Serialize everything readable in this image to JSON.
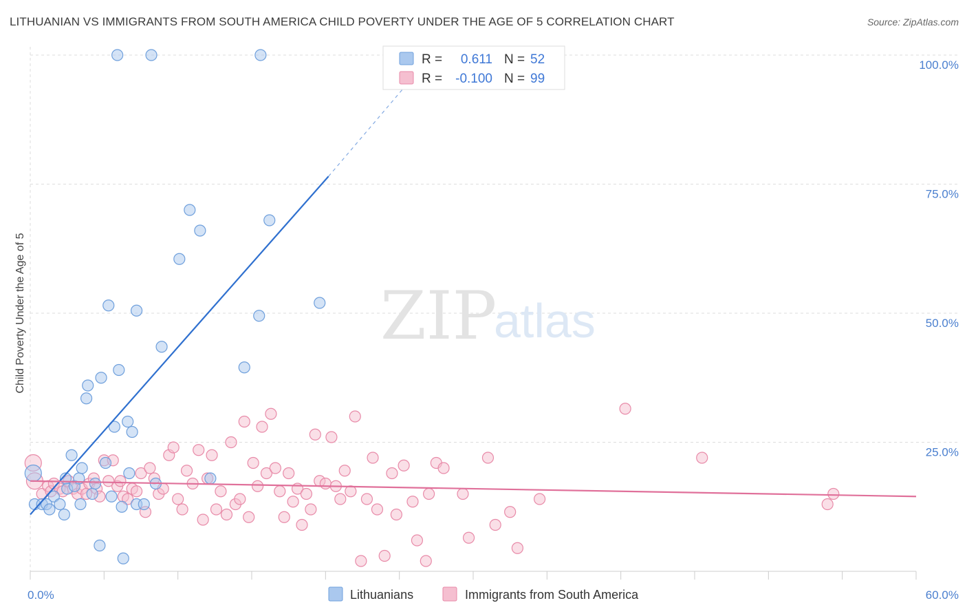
{
  "title": "LITHUANIAN VS IMMIGRANTS FROM SOUTH AMERICA CHILD POVERTY UNDER THE AGE OF 5 CORRELATION CHART",
  "source": "Source: ZipAtlas.com",
  "watermark": {
    "zip": "ZIP",
    "atlas": "atlas"
  },
  "colors": {
    "blue_fill": "#aac8ee",
    "blue_stroke": "#6e9fdc",
    "blue_line": "#2f70cf",
    "pink_fill": "#f5bfd0",
    "pink_stroke": "#e88aa8",
    "pink_line": "#e0709a",
    "grid": "#dddddd",
    "axis_text": "#4a7fcf"
  },
  "legend": {
    "r_label": "R =",
    "n_label": "N =",
    "rows": [
      {
        "series": "Lithuanians",
        "r": "0.611",
        "n": "52"
      },
      {
        "series": "Immigrants from South America",
        "r": "-0.100",
        "n": "99"
      }
    ]
  },
  "chart_data": {
    "type": "scatter",
    "title": "LITHUANIAN VS IMMIGRANTS FROM SOUTH AMERICA CHILD POVERTY UNDER THE AGE OF 5 CORRELATION CHART",
    "xlabel": "",
    "ylabel": "Child Poverty Under the Age of 5",
    "xlim": [
      0,
      60
    ],
    "ylim": [
      0,
      100
    ],
    "x_tick_labels": [
      {
        "value": 0,
        "label": "0.0%"
      },
      {
        "value": 60,
        "label": "60.0%"
      }
    ],
    "y_tick_labels": [
      {
        "value": 25,
        "label": "25.0%"
      },
      {
        "value": 50,
        "label": "50.0%"
      },
      {
        "value": 75,
        "label": "75.0%"
      },
      {
        "value": 100,
        "label": "100.0%"
      }
    ],
    "grid": true,
    "legend_position": "top-center",
    "series": [
      {
        "name": "Lithuanians",
        "color": "blue",
        "trend": {
          "x": [
            0,
            20.2
          ],
          "y": [
            11,
            76.5
          ],
          "dashed_to": [
            26,
            96
          ]
        },
        "points": [
          [
            0.2,
            19.0,
            12
          ],
          [
            0.3,
            13.0,
            8
          ],
          [
            0.8,
            13.0,
            8
          ],
          [
            1.1,
            13.0,
            8
          ],
          [
            1.3,
            12.0,
            8
          ],
          [
            1.6,
            14.5,
            8
          ],
          [
            2.0,
            13.0,
            8
          ],
          [
            2.3,
            11.0,
            8
          ],
          [
            2.5,
            16.0,
            8
          ],
          [
            2.4,
            18.0,
            8
          ],
          [
            2.8,
            22.5,
            8
          ],
          [
            3.0,
            16.5,
            8
          ],
          [
            3.3,
            18.0,
            8
          ],
          [
            3.4,
            13.0,
            8
          ],
          [
            3.5,
            20.0,
            8
          ],
          [
            3.8,
            33.5,
            8
          ],
          [
            3.9,
            36.0,
            8
          ],
          [
            4.2,
            15.0,
            8
          ],
          [
            4.4,
            17.0,
            8
          ],
          [
            4.7,
            5.0,
            8
          ],
          [
            4.8,
            37.5,
            8
          ],
          [
            5.1,
            21.0,
            8
          ],
          [
            5.3,
            51.5,
            8
          ],
          [
            5.5,
            14.5,
            8
          ],
          [
            5.7,
            28.0,
            8
          ],
          [
            5.9,
            100.0,
            8
          ],
          [
            6.0,
            39.0,
            8
          ],
          [
            6.2,
            12.5,
            8
          ],
          [
            6.3,
            2.5,
            8
          ],
          [
            6.6,
            29.0,
            8
          ],
          [
            6.7,
            19.0,
            8
          ],
          [
            6.9,
            27.0,
            8
          ],
          [
            7.2,
            50.5,
            8
          ],
          [
            7.2,
            13.0,
            8
          ],
          [
            7.7,
            13.0,
            8
          ],
          [
            8.2,
            100.0,
            8
          ],
          [
            8.5,
            17.0,
            8
          ],
          [
            8.9,
            43.5,
            8
          ],
          [
            10.1,
            60.5,
            8
          ],
          [
            10.8,
            70.0,
            8
          ],
          [
            11.5,
            66.0,
            8
          ],
          [
            12.2,
            18.0,
            8
          ],
          [
            14.5,
            39.5,
            8
          ],
          [
            15.5,
            49.5,
            8
          ],
          [
            15.6,
            100.0,
            8
          ],
          [
            16.2,
            68.0,
            8
          ],
          [
            19.6,
            52.0,
            8
          ]
        ]
      },
      {
        "name": "Immigrants from South America",
        "color": "pink",
        "trend": {
          "x": [
            0,
            60
          ],
          "y": [
            17.5,
            14.5
          ]
        },
        "points": [
          [
            0.2,
            21.0,
            12
          ],
          [
            0.3,
            17.5,
            12
          ],
          [
            0.8,
            15.0,
            8
          ],
          [
            1.2,
            16.5,
            8
          ],
          [
            1.4,
            15.5,
            8
          ],
          [
            1.6,
            17.0,
            8
          ],
          [
            2.0,
            16.0,
            8
          ],
          [
            2.2,
            15.5,
            8
          ],
          [
            2.6,
            17.5,
            8
          ],
          [
            2.9,
            16.0,
            8
          ],
          [
            3.2,
            15.0,
            8
          ],
          [
            3.5,
            16.0,
            8
          ],
          [
            3.8,
            15.0,
            8
          ],
          [
            4.0,
            17.0,
            8
          ],
          [
            4.3,
            18.0,
            8
          ],
          [
            4.5,
            16.0,
            8
          ],
          [
            4.7,
            14.5,
            8
          ],
          [
            5.0,
            21.5,
            8
          ],
          [
            5.3,
            17.5,
            8
          ],
          [
            5.6,
            21.5,
            8
          ],
          [
            5.9,
            16.5,
            8
          ],
          [
            6.1,
            17.5,
            8
          ],
          [
            6.3,
            14.5,
            8
          ],
          [
            6.6,
            14.0,
            8
          ],
          [
            6.9,
            16.0,
            8
          ],
          [
            7.2,
            15.5,
            8
          ],
          [
            7.5,
            19.0,
            8
          ],
          [
            7.8,
            11.5,
            8
          ],
          [
            8.1,
            20.0,
            8
          ],
          [
            8.4,
            18.0,
            8
          ],
          [
            8.7,
            15.0,
            8
          ],
          [
            9.0,
            16.0,
            8
          ],
          [
            9.4,
            22.5,
            8
          ],
          [
            9.7,
            24.0,
            8
          ],
          [
            10.0,
            14.0,
            8
          ],
          [
            10.3,
            12.0,
            8
          ],
          [
            10.6,
            19.5,
            8
          ],
          [
            11.0,
            17.0,
            8
          ],
          [
            11.4,
            23.5,
            8
          ],
          [
            11.7,
            10.0,
            8
          ],
          [
            12.0,
            18.0,
            8
          ],
          [
            12.3,
            22.5,
            8
          ],
          [
            12.6,
            12.0,
            8
          ],
          [
            12.9,
            15.5,
            8
          ],
          [
            13.3,
            11.0,
            8
          ],
          [
            13.6,
            25.0,
            8
          ],
          [
            13.9,
            13.0,
            8
          ],
          [
            14.2,
            14.0,
            8
          ],
          [
            14.5,
            29.0,
            8
          ],
          [
            14.8,
            10.5,
            8
          ],
          [
            15.1,
            21.0,
            8
          ],
          [
            15.4,
            16.5,
            8
          ],
          [
            15.7,
            28.0,
            8
          ],
          [
            16.0,
            19.0,
            8
          ],
          [
            16.3,
            30.5,
            8
          ],
          [
            16.6,
            20.0,
            8
          ],
          [
            16.9,
            15.5,
            8
          ],
          [
            17.2,
            10.5,
            8
          ],
          [
            17.5,
            19.0,
            8
          ],
          [
            17.8,
            13.5,
            8
          ],
          [
            18.1,
            16.0,
            8
          ],
          [
            18.4,
            9.0,
            8
          ],
          [
            18.7,
            15.0,
            8
          ],
          [
            19.0,
            12.0,
            8
          ],
          [
            19.3,
            26.5,
            8
          ],
          [
            19.6,
            17.5,
            8
          ],
          [
            20.0,
            17.0,
            8
          ],
          [
            20.4,
            26.0,
            8
          ],
          [
            20.7,
            16.5,
            8
          ],
          [
            21.0,
            14.0,
            8
          ],
          [
            21.3,
            19.5,
            8
          ],
          [
            21.7,
            15.5,
            8
          ],
          [
            22.0,
            30.0,
            8
          ],
          [
            22.4,
            2.0,
            8
          ],
          [
            22.8,
            14.0,
            8
          ],
          [
            23.2,
            22.0,
            8
          ],
          [
            23.5,
            12.0,
            8
          ],
          [
            24.0,
            3.0,
            8
          ],
          [
            24.5,
            19.0,
            8
          ],
          [
            24.8,
            11.0,
            8
          ],
          [
            25.3,
            20.5,
            8
          ],
          [
            25.9,
            13.5,
            8
          ],
          [
            26.2,
            6.0,
            8
          ],
          [
            26.8,
            2.0,
            8
          ],
          [
            27.0,
            15.0,
            8
          ],
          [
            27.5,
            21.0,
            8
          ],
          [
            28.0,
            20.0,
            8
          ],
          [
            29.3,
            15.0,
            8
          ],
          [
            29.7,
            6.5,
            8
          ],
          [
            31.0,
            22.0,
            8
          ],
          [
            31.5,
            9.0,
            8
          ],
          [
            32.5,
            11.5,
            8
          ],
          [
            33.0,
            4.5,
            8
          ],
          [
            34.5,
            14.0,
            8
          ],
          [
            40.3,
            31.5,
            8
          ],
          [
            45.5,
            22.0,
            8
          ],
          [
            54.0,
            13.0,
            8
          ],
          [
            54.4,
            15.0,
            8
          ]
        ]
      }
    ]
  }
}
